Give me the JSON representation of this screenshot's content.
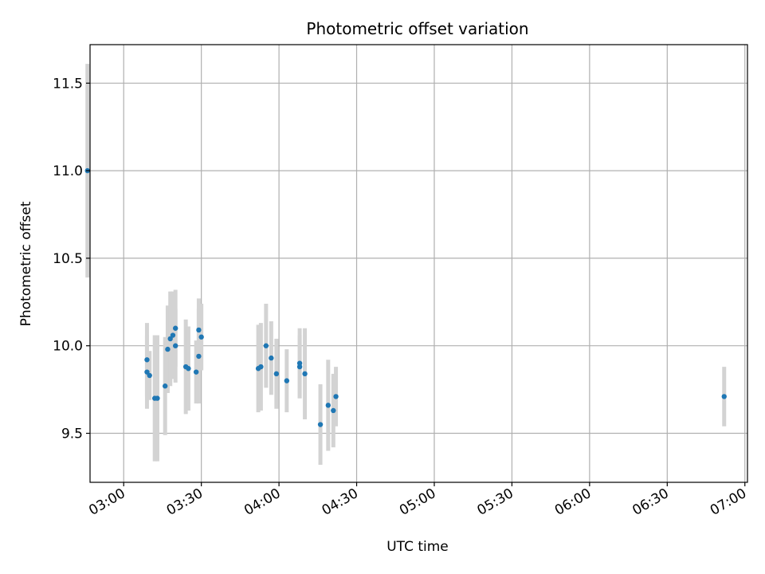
{
  "chart_data": {
    "type": "scatter",
    "title": "Photometric offset variation",
    "xlabel": "UTC time",
    "ylabel": "Photometric offset",
    "x_unit": "UTC time (HH:MM)",
    "xlim": [
      "02:47",
      "07:01"
    ],
    "ylim": [
      9.22,
      11.72
    ],
    "xticks": [
      "03:00",
      "03:30",
      "04:00",
      "04:30",
      "05:00",
      "05:30",
      "06:00",
      "06:30",
      "07:00"
    ],
    "yticks": [
      "9.5",
      "10.0",
      "10.5",
      "11.0",
      "11.5"
    ],
    "grid": true,
    "colors": {
      "marker": "#1f77b4",
      "errorbar": "#d3d3d3",
      "grid": "#b0b0b0"
    },
    "series": [
      {
        "points": [
          {
            "x": "02:46",
            "y": 11.0,
            "err": 0.61
          },
          {
            "x": "03:09",
            "y": 9.85,
            "err": 0.21
          },
          {
            "x": "03:09",
            "y": 9.92,
            "err": 0.21
          },
          {
            "x": "03:10",
            "y": 9.83,
            "err": 0.14
          },
          {
            "x": "03:12",
            "y": 9.7,
            "err": 0.36
          },
          {
            "x": "03:13",
            "y": 9.7,
            "err": 0.36
          },
          {
            "x": "03:16",
            "y": 9.77,
            "err": 0.28
          },
          {
            "x": "03:17",
            "y": 9.98,
            "err": 0.25
          },
          {
            "x": "03:18",
            "y": 10.04,
            "err": 0.27
          },
          {
            "x": "03:19",
            "y": 10.06,
            "err": 0.25
          },
          {
            "x": "03:20",
            "y": 10.1,
            "err": 0.22
          },
          {
            "x": "03:20",
            "y": 10.0,
            "err": 0.21
          },
          {
            "x": "03:24",
            "y": 9.88,
            "err": 0.27
          },
          {
            "x": "03:25",
            "y": 9.87,
            "err": 0.24
          },
          {
            "x": "03:28",
            "y": 9.85,
            "err": 0.18
          },
          {
            "x": "03:29",
            "y": 9.94,
            "err": 0.27
          },
          {
            "x": "03:29",
            "y": 10.09,
            "err": 0.18
          },
          {
            "x": "03:30",
            "y": 10.05,
            "err": 0.19
          },
          {
            "x": "03:52",
            "y": 9.87,
            "err": 0.25
          },
          {
            "x": "03:53",
            "y": 9.88,
            "err": 0.25
          },
          {
            "x": "03:55",
            "y": 10.0,
            "err": 0.24
          },
          {
            "x": "03:57",
            "y": 9.93,
            "err": 0.21
          },
          {
            "x": "03:59",
            "y": 9.84,
            "err": 0.2
          },
          {
            "x": "04:03",
            "y": 9.8,
            "err": 0.18
          },
          {
            "x": "04:08",
            "y": 9.88,
            "err": 0.18
          },
          {
            "x": "04:08",
            "y": 9.9,
            "err": 0.2
          },
          {
            "x": "04:10",
            "y": 9.84,
            "err": 0.26
          },
          {
            "x": "04:16",
            "y": 9.55,
            "err": 0.23
          },
          {
            "x": "04:19",
            "y": 9.66,
            "err": 0.26
          },
          {
            "x": "04:21",
            "y": 9.63,
            "err": 0.21
          },
          {
            "x": "04:22",
            "y": 9.71,
            "err": 0.17
          },
          {
            "x": "06:52",
            "y": 9.71,
            "err": 0.17
          }
        ]
      }
    ]
  }
}
